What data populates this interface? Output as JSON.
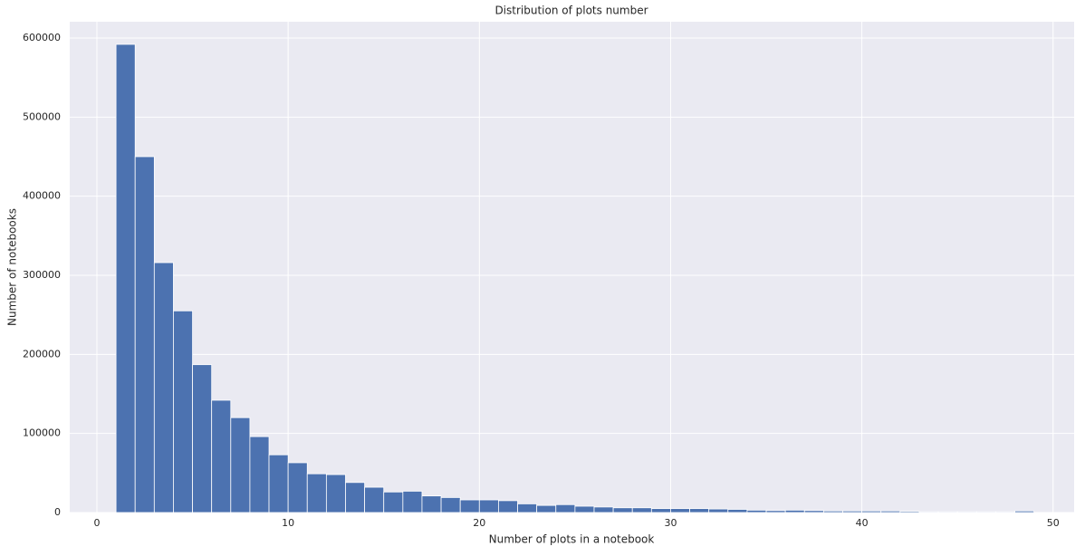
{
  "chart_data": {
    "type": "histogram",
    "title": "Distribution of plots number",
    "x_label": "Number of plots in a notebook",
    "y_label": "Number of notebooks",
    "bins": [
      1,
      2,
      3,
      4,
      5,
      6,
      7,
      8,
      9,
      10,
      11,
      12,
      13,
      14,
      15,
      16,
      17,
      18,
      19,
      20,
      21,
      22,
      23,
      24,
      25,
      26,
      27,
      28,
      29,
      30,
      31,
      32,
      33,
      34,
      35,
      36,
      37,
      38,
      39,
      40,
      41,
      42,
      43,
      44,
      45,
      46,
      47,
      48,
      49
    ],
    "counts": [
      592000,
      450000,
      316000,
      255000,
      187000,
      142000,
      120000,
      96000,
      73000,
      63000,
      49000,
      48000,
      38000,
      32000,
      26000,
      27000,
      21000,
      19000,
      16000,
      16000,
      15000,
      11000,
      9000,
      10000,
      8000,
      7000,
      6000,
      6000,
      5000,
      5000,
      5000,
      4500,
      4000,
      3000,
      2500,
      3000,
      2500,
      2000,
      2000,
      2000,
      2000,
      1500,
      1000,
      1000,
      1000,
      1000,
      1000,
      2000
    ],
    "color": "#4c72b0",
    "xlim": [
      -1.42,
      51.1
    ],
    "xticks": [
      0,
      10,
      20,
      30,
      40,
      50
    ],
    "ylim": [
      0,
      620600
    ],
    "yticks": [
      0,
      100000,
      200000,
      300000,
      400000,
      500000,
      600000
    ],
    "grid": true
  }
}
